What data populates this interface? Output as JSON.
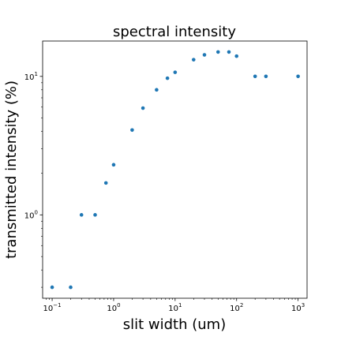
{
  "chart_data": {
    "type": "scatter",
    "title": "spectral intensity",
    "xlabel": "slit width (um)",
    "ylabel": "transmitted intensity (%)",
    "xscale": "log",
    "yscale": "log",
    "xlim": [
      0.07,
      1400
    ],
    "ylim": [
      0.25,
      18
    ],
    "x_ticks": [
      {
        "value": 0.1,
        "base": "10",
        "exp": "−1"
      },
      {
        "value": 1,
        "base": "10",
        "exp": "0"
      },
      {
        "value": 10,
        "base": "10",
        "exp": "1"
      },
      {
        "value": 100,
        "base": "10",
        "exp": "2"
      },
      {
        "value": 1000,
        "base": "10",
        "exp": "3"
      }
    ],
    "y_ticks": [
      {
        "value": 1,
        "base": "10",
        "exp": "0"
      },
      {
        "value": 10,
        "base": "10",
        "exp": "1"
      }
    ],
    "grid": false,
    "marker_color": "#1f77b4",
    "x": [
      0.1,
      0.2,
      0.3,
      0.5,
      0.75,
      1,
      2,
      3,
      5,
      7.5,
      10,
      20,
      30,
      50,
      75,
      100,
      200,
      300,
      1000
    ],
    "y": [
      0.3,
      0.3,
      1.0,
      1.0,
      1.7,
      2.3,
      4.1,
      5.9,
      8.0,
      9.7,
      10.7,
      13.2,
      14.3,
      15.0,
      15.0,
      14.0,
      10.0,
      10.0,
      10.0
    ]
  }
}
